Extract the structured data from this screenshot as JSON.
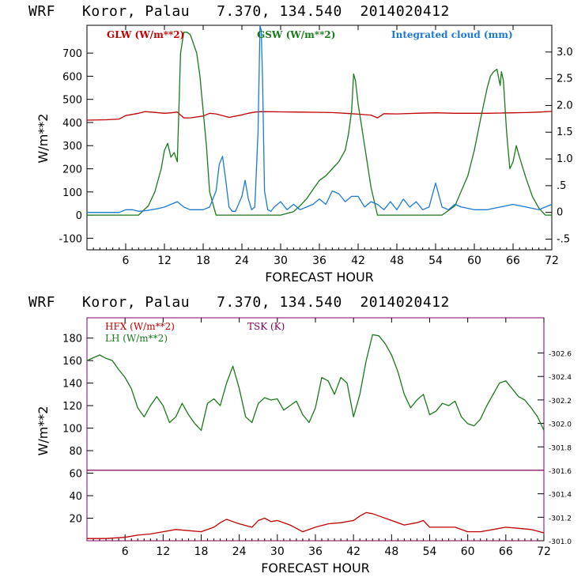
{
  "chart_data": [
    {
      "type": "line",
      "title": "WRF   Koror, Palau   7.370, 134.540  2014020412",
      "xlabel": "FORECAST HOUR",
      "ylabel": "W/m**2",
      "xlim": [
        0,
        72
      ],
      "ylim": [
        -150,
        820
      ],
      "y2lim": [
        -0.7,
        3.5
      ],
      "xticks": [
        6,
        12,
        18,
        24,
        30,
        36,
        42,
        48,
        54,
        60,
        66,
        72
      ],
      "yticks": [
        -100,
        0,
        100,
        200,
        300,
        400,
        500,
        600,
        700
      ],
      "y2ticks": [
        -0.5,
        0,
        0.5,
        1.0,
        1.5,
        2.0,
        2.5,
        3.0
      ],
      "y2tick_labels": [
        "-.5",
        "0",
        ".5",
        "1.0",
        "1.5",
        "2.0",
        "2.5",
        "3.0"
      ],
      "legend": [
        "GLW (W/m**2)",
        "GSW (W/m**2)",
        "Integrated cloud (mm)"
      ],
      "series": [
        {
          "name": "GLW (W/m**2)",
          "color": "#c00000",
          "axis": "left",
          "x": [
            0,
            3,
            5,
            6,
            8,
            9,
            10,
            12,
            13,
            14,
            15,
            16,
            18,
            19,
            20,
            21,
            22,
            24,
            25,
            26,
            27,
            30,
            33,
            36,
            38,
            40,
            42,
            44,
            45,
            46,
            48,
            51,
            54,
            57,
            60,
            62,
            64,
            66,
            68,
            70,
            72
          ],
          "y": [
            410,
            412,
            415,
            430,
            440,
            447,
            445,
            440,
            442,
            445,
            420,
            420,
            428,
            440,
            437,
            430,
            422,
            433,
            440,
            445,
            447,
            446,
            445,
            444,
            443,
            440,
            436,
            432,
            420,
            438,
            437,
            440,
            442,
            440,
            440,
            440,
            441,
            442,
            443,
            445,
            448
          ]
        },
        {
          "name": "GSW (W/m**2)",
          "color": "#1a7a1a",
          "axis": "left",
          "x": [
            0,
            7,
            8,
            9.5,
            10.5,
            11.5,
            12,
            12.5,
            13,
            13.5,
            14,
            14.5,
            15,
            15.5,
            16,
            17,
            17.5,
            18,
            18.5,
            19,
            20,
            30,
            32,
            33,
            34,
            35,
            36,
            37,
            38,
            39,
            40,
            40.5,
            41,
            41.3,
            41.6,
            42,
            43,
            44,
            45,
            55,
            57,
            59,
            60,
            61,
            62,
            62.5,
            63,
            63.5,
            64,
            64.2,
            64.5,
            65,
            65.5,
            66,
            66.5,
            67,
            68,
            69,
            70,
            71,
            72
          ],
          "y": [
            0,
            0,
            0,
            40,
            100,
            200,
            280,
            310,
            250,
            270,
            230,
            700,
            790,
            790,
            780,
            700,
            600,
            450,
            300,
            100,
            0,
            0,
            15,
            40,
            70,
            110,
            150,
            170,
            200,
            230,
            280,
            350,
            450,
            610,
            580,
            480,
            300,
            120,
            0,
            0,
            40,
            170,
            280,
            420,
            550,
            600,
            620,
            630,
            560,
            620,
            580,
            360,
            200,
            230,
            300,
            250,
            160,
            80,
            30,
            0,
            0
          ]
        },
        {
          "name": "Integrated cloud (mm)",
          "color": "#1a7ad4",
          "axis": "right",
          "x": [
            0,
            5,
            6,
            7,
            8,
            9,
            10,
            11,
            12,
            13,
            14,
            15,
            16,
            18,
            19,
            20,
            20.5,
            21,
            21.5,
            22,
            22.5,
            23,
            24,
            24.5,
            25,
            25.5,
            26,
            26.5,
            26.8,
            27,
            27.2,
            27.5,
            28,
            28.5,
            29,
            30,
            31,
            32,
            33,
            34,
            35,
            36,
            37,
            38,
            39,
            40,
            41,
            42,
            43,
            44,
            45,
            46,
            47,
            48,
            49,
            50,
            51,
            52,
            53,
            54,
            55,
            56,
            57,
            58,
            60,
            62,
            64,
            66,
            68,
            70,
            71,
            72
          ],
          "y": [
            0,
            0,
            0.05,
            0.05,
            0.02,
            0.03,
            0.05,
            0.07,
            0.1,
            0.15,
            0.2,
            0.1,
            0.05,
            0.05,
            0.1,
            0.4,
            0.9,
            1.05,
            0.6,
            0.1,
            0.02,
            0.02,
            0.3,
            0.6,
            0.25,
            0.05,
            0.1,
            1.5,
            3.5,
            3.4,
            2.5,
            0.4,
            0.05,
            0.02,
            0.1,
            0.2,
            0.05,
            0.15,
            0.05,
            0.1,
            0.15,
            0.25,
            0.15,
            0.4,
            0.35,
            0.2,
            0.3,
            0.3,
            0.1,
            0.2,
            0.15,
            0.05,
            0.2,
            0.05,
            0.25,
            0.1,
            0.2,
            0.05,
            0.1,
            0.55,
            0.1,
            0.05,
            0.15,
            0.1,
            0.05,
            0.05,
            0.1,
            0.15,
            0.1,
            0.05,
            0.1,
            0.15
          ]
        }
      ]
    },
    {
      "type": "line",
      "title": "WRF   Koror, Palau   7.370, 134.540  2014020412",
      "xlabel": "FORECAST HOUR",
      "ylabel": "W/m**2",
      "xlim": [
        0,
        72
      ],
      "ylim": [
        0,
        198
      ],
      "y2lim": [
        301.0,
        302.9
      ],
      "xticks": [
        6,
        12,
        18,
        24,
        30,
        36,
        42,
        48,
        54,
        60,
        66,
        72
      ],
      "yticks": [
        20,
        40,
        60,
        80,
        100,
        120,
        140,
        160,
        180
      ],
      "y2ticks": [
        301.0,
        301.2,
        301.4,
        301.6,
        301.8,
        302.0,
        302.2,
        302.4,
        302.6
      ],
      "y2tick_labels": [
        "-301.0",
        "-301.2",
        "-301.4",
        "-301.6",
        "-301.8",
        "-302.0",
        "-302.2",
        "-302.4",
        "-302.6"
      ],
      "legend": [
        "HFX (W/m**2)",
        "LH  (W/m**2)",
        "TSK (K)"
      ],
      "series": [
        {
          "name": "HFX (W/m**2)",
          "color": "#c00000",
          "axis": "left",
          "x": [
            0,
            3,
            6,
            8,
            10,
            12,
            14,
            16,
            18,
            20,
            21,
            22,
            23,
            24,
            26,
            27,
            28,
            29,
            30,
            32,
            34,
            36,
            38,
            40,
            42,
            43,
            44,
            45,
            46,
            48,
            50,
            52,
            53,
            54,
            56,
            58,
            60,
            62,
            64,
            66,
            68,
            70,
            72
          ],
          "y": [
            2,
            2,
            3,
            5,
            6,
            8,
            10,
            9,
            8,
            12,
            16,
            19,
            17,
            15,
            12,
            18,
            20,
            17,
            18,
            14,
            8,
            12,
            15,
            16,
            18,
            22,
            25,
            24,
            22,
            18,
            14,
            16,
            18,
            12,
            12,
            12,
            8,
            8,
            10,
            12,
            11,
            10,
            7
          ]
        },
        {
          "name": "LH  (W/m**2)",
          "color": "#1a7a1a",
          "axis": "left",
          "x": [
            0,
            2,
            3,
            4,
            5,
            6,
            7,
            8,
            9,
            10,
            11,
            12,
            13,
            14,
            15,
            16,
            17,
            18,
            19,
            20,
            21,
            22,
            23,
            24,
            25,
            26,
            27,
            28,
            29,
            30,
            31,
            32,
            33,
            34,
            35,
            36,
            37,
            38,
            39,
            40,
            41,
            42,
            43,
            44,
            45,
            46,
            47,
            48,
            49,
            50,
            51,
            52,
            53,
            54,
            55,
            56,
            57,
            58,
            59,
            60,
            61,
            62,
            63,
            64,
            65,
            66,
            67,
            68,
            69,
            70,
            71,
            72
          ],
          "y": [
            160,
            165,
            162,
            160,
            152,
            145,
            135,
            118,
            110,
            120,
            128,
            120,
            105,
            110,
            122,
            112,
            104,
            98,
            122,
            126,
            120,
            140,
            155,
            135,
            110,
            105,
            122,
            127,
            125,
            126,
            116,
            120,
            124,
            112,
            105,
            118,
            145,
            142,
            130,
            145,
            140,
            110,
            130,
            160,
            183,
            182,
            175,
            165,
            150,
            130,
            118,
            125,
            130,
            112,
            115,
            122,
            120,
            124,
            110,
            104,
            102,
            108,
            120,
            130,
            140,
            142,
            135,
            128,
            125,
            118,
            110,
            98
          ]
        },
        {
          "name": "TSK (K)",
          "color": "#800060",
          "axis": "right",
          "x": [
            0,
            72
          ],
          "y": [
            301.6,
            301.6
          ]
        }
      ]
    }
  ]
}
